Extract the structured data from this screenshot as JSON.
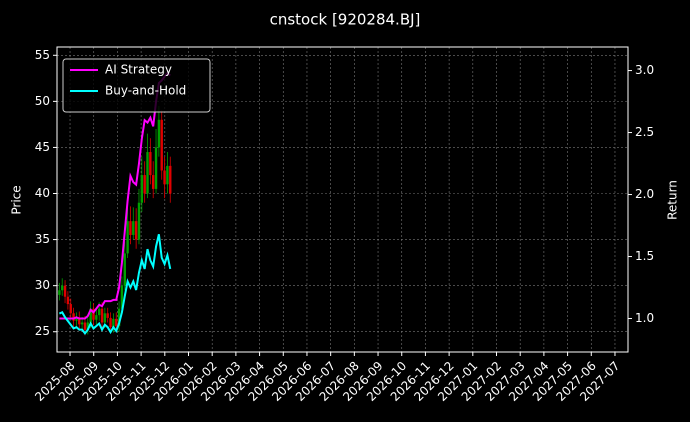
{
  "chart_data": {
    "type": "candlestick",
    "title": "cnstock [920284.BJ]",
    "ylabel": "Price",
    "y2label": "Return",
    "x": [
      -0.45,
      -0.33,
      -0.21,
      -0.09,
      0.03,
      0.15,
      0.27,
      0.39,
      0.51,
      0.63,
      0.75,
      0.87,
      0.99,
      1.11,
      1.23,
      1.35,
      1.47,
      1.59,
      1.71,
      1.83,
      1.95,
      2.07,
      2.19,
      2.31,
      2.43,
      2.55,
      2.67,
      2.79,
      2.91,
      3.03,
      3.15,
      3.27,
      3.39,
      3.51,
      3.63,
      3.75,
      3.87,
      3.99,
      4.11,
      4.23
    ],
    "open": [
      29.0,
      29.5,
      30.0,
      28.8,
      28.0,
      27.0,
      26.2,
      26.5,
      25.8,
      26.0,
      25.2,
      26.0,
      27.5,
      26.3,
      26.8,
      27.5,
      26.0,
      27.0,
      26.5,
      25.5,
      26.4,
      25.6,
      27.5,
      30.0,
      33.5,
      37.0,
      35.5,
      37.0,
      35.0,
      39.0,
      42.0,
      40.0,
      44.5,
      42.0,
      40.5,
      45.0,
      48.0,
      42.5,
      41.0,
      43.0
    ],
    "high": [
      30.3,
      30.8,
      30.6,
      29.4,
      28.6,
      27.6,
      27.1,
      27.2,
      26.6,
      26.7,
      26.6,
      28.3,
      28.1,
      27.4,
      28.2,
      28.2,
      27.6,
      27.6,
      27.1,
      27.0,
      27.1,
      28.3,
      31.0,
      34.8,
      38.5,
      38.6,
      38.5,
      38.4,
      40.5,
      44.0,
      43.5,
      46.5,
      46.0,
      43.5,
      47.0,
      49.5,
      49.0,
      44.0,
      44.5,
      44.0
    ],
    "low": [
      28.4,
      28.9,
      28.1,
      27.4,
      26.4,
      25.5,
      25.6,
      25.1,
      25.2,
      24.6,
      24.7,
      25.4,
      25.7,
      25.8,
      26.2,
      25.4,
      25.4,
      26.0,
      24.9,
      24.9,
      25.0,
      25.0,
      27.0,
      29.5,
      33.0,
      34.5,
      35.0,
      34.0,
      34.5,
      38.0,
      39.0,
      39.5,
      41.0,
      39.5,
      40.0,
      44.0,
      41.5,
      39.5,
      40.0,
      39.0
    ],
    "close": [
      29.5,
      30.0,
      28.8,
      28.0,
      27.0,
      26.2,
      26.5,
      25.8,
      26.0,
      25.2,
      26.0,
      27.5,
      26.3,
      26.8,
      27.5,
      26.0,
      27.0,
      26.5,
      25.5,
      26.4,
      25.6,
      27.5,
      30.0,
      33.5,
      37.0,
      35.5,
      37.0,
      35.0,
      39.0,
      42.0,
      40.0,
      44.5,
      42.0,
      40.5,
      45.0,
      48.0,
      42.5,
      41.0,
      43.0,
      40.0
    ],
    "up_color": "#00a000",
    "down_color": "#e00000",
    "series": [
      {
        "name": "AI Strategy",
        "color": "#ff00ff",
        "axis": "y2",
        "values": [
          1.0,
          1.0,
          1.0,
          1.0,
          1.0,
          1.0,
          1.01,
          1.0,
          1.0,
          1.0,
          1.02,
          1.07,
          1.05,
          1.08,
          1.11,
          1.1,
          1.14,
          1.14,
          1.14,
          1.15,
          1.15,
          1.25,
          1.45,
          1.7,
          1.95,
          2.15,
          2.1,
          2.08,
          2.25,
          2.45,
          2.6,
          2.58,
          2.62,
          2.55,
          2.75,
          2.9,
          2.92,
          2.95,
          2.98,
          2.96
        ]
      },
      {
        "name": "Buy-and-Hold",
        "color": "#00ffff",
        "axis": "y2",
        "values": [
          1.04,
          1.05,
          1.01,
          0.98,
          0.95,
          0.92,
          0.93,
          0.91,
          0.91,
          0.88,
          0.91,
          0.96,
          0.92,
          0.94,
          0.96,
          0.91,
          0.95,
          0.93,
          0.89,
          0.93,
          0.9,
          0.96,
          1.05,
          1.18,
          1.3,
          1.25,
          1.3,
          1.23,
          1.37,
          1.47,
          1.4,
          1.56,
          1.47,
          1.42,
          1.58,
          1.68,
          1.49,
          1.44,
          1.51,
          1.4
        ]
      }
    ],
    "xlim": [
      -0.55,
      23.55
    ],
    "xticks": [
      {
        "value": 0,
        "label": "2025-08"
      },
      {
        "value": 1,
        "label": "2025-09"
      },
      {
        "value": 2,
        "label": "2025-10"
      },
      {
        "value": 3,
        "label": "2025-11"
      },
      {
        "value": 4,
        "label": "2025-12"
      },
      {
        "value": 5,
        "label": "2026-01"
      },
      {
        "value": 6,
        "label": "2026-02"
      },
      {
        "value": 7,
        "label": "2026-03"
      },
      {
        "value": 8,
        "label": "2026-04"
      },
      {
        "value": 9,
        "label": "2026-05"
      },
      {
        "value": 10,
        "label": "2026-06"
      },
      {
        "value": 11,
        "label": "2026-07"
      },
      {
        "value": 12,
        "label": "2026-08"
      },
      {
        "value": 13,
        "label": "2026-09"
      },
      {
        "value": 14,
        "label": "2026-10"
      },
      {
        "value": 15,
        "label": "2026-11"
      },
      {
        "value": 16,
        "label": "2026-12"
      },
      {
        "value": 17,
        "label": "2027-01"
      },
      {
        "value": 18,
        "label": "2027-02"
      },
      {
        "value": 19,
        "label": "2027-03"
      },
      {
        "value": 20,
        "label": "2027-04"
      },
      {
        "value": 21,
        "label": "2027-05"
      },
      {
        "value": 22,
        "label": "2027-06"
      },
      {
        "value": 23,
        "label": "2027-07"
      }
    ],
    "ylim": [
      22.8,
      55.9
    ],
    "yticks": [
      25,
      30,
      35,
      40,
      45,
      50,
      55
    ],
    "y2lim": [
      0.73,
      3.19
    ],
    "y2ticks": [
      {
        "value": 1,
        "label": "1.0"
      },
      1.5,
      {
        "value": 2,
        "label": "2.0"
      },
      2.5,
      {
        "value": 3,
        "label": "3.0"
      }
    ],
    "grid": true,
    "legend": "upper left"
  }
}
